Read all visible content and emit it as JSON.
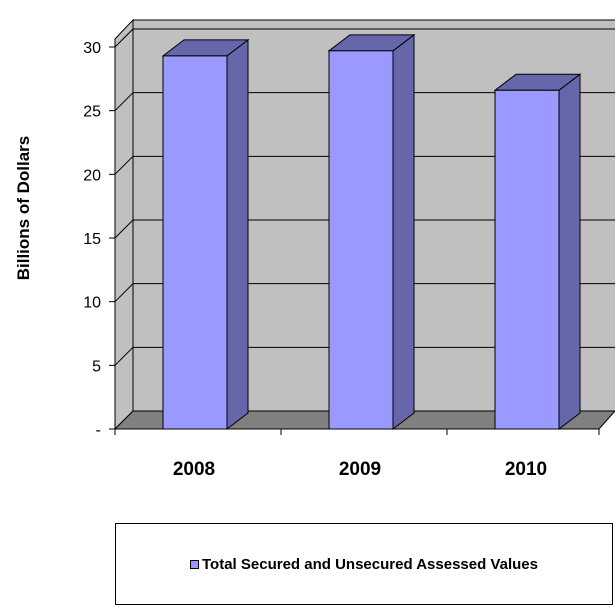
{
  "chart_data": {
    "type": "bar",
    "style": "3d-column",
    "categories": [
      "2008",
      "2009",
      "2010"
    ],
    "series": [
      {
        "name": "Total Secured and Unsecured Assessed Values",
        "values": [
          29.3,
          29.7,
          26.6
        ],
        "color": "#9999FF",
        "side_color": "#6666AA"
      }
    ],
    "ylabel": "Billions of Dollars",
    "xlabel": "",
    "ylim": [
      0,
      30
    ],
    "y_ticks": [
      {
        "value": 0,
        "label": "-"
      },
      {
        "value": 5,
        "label": "5"
      },
      {
        "value": 10,
        "label": "10"
      },
      {
        "value": 15,
        "label": "15"
      },
      {
        "value": 20,
        "label": "20"
      },
      {
        "value": 25,
        "label": "25"
      },
      {
        "value": 30,
        "label": "30"
      }
    ],
    "grid": true,
    "wall_color": "#C0C0C0",
    "floor_color": "#808080",
    "legend_position": "bottom"
  }
}
